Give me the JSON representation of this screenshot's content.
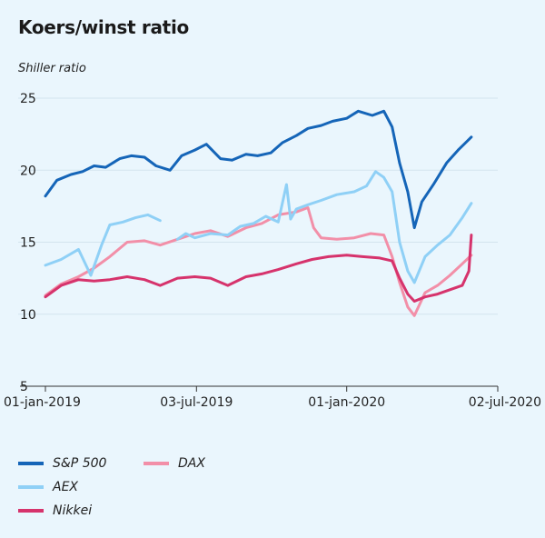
{
  "header": {
    "title": "Koers/winst ratio"
  },
  "chart_data": {
    "type": "line",
    "ylabel": "Shiller ratio",
    "ylim": [
      5,
      25
    ],
    "yticks": [
      "5",
      "10",
      "15",
      "20",
      "25"
    ],
    "xticks": [
      "01-jan-2019",
      "03-jul-2019",
      "01-jan-2020",
      "02-jul-2020"
    ],
    "grid": "horizontal",
    "legend_position": "bottom-left",
    "series": [
      {
        "name": "S&P 500",
        "color": "#1565b8",
        "x": [
          "2019-01-01",
          "2019-01-15",
          "2019-02-01",
          "2019-02-15",
          "2019-03-01",
          "2019-03-15",
          "2019-04-01",
          "2019-04-15",
          "2019-05-01",
          "2019-05-15",
          "2019-06-01",
          "2019-06-15",
          "2019-07-01",
          "2019-07-15",
          "2019-08-01",
          "2019-08-15",
          "2019-09-01",
          "2019-09-15",
          "2019-10-01",
          "2019-10-15",
          "2019-11-01",
          "2019-11-15",
          "2019-12-01",
          "2019-12-15",
          "2020-01-01",
          "2020-01-15",
          "2020-02-01",
          "2020-02-15",
          "2020-02-25",
          "2020-03-05",
          "2020-03-15",
          "2020-03-23",
          "2020-04-01",
          "2020-04-15",
          "2020-05-01",
          "2020-05-15",
          "2020-05-31"
        ],
        "values": [
          18.2,
          19.3,
          19.7,
          19.9,
          20.3,
          20.2,
          20.8,
          21.0,
          20.9,
          20.3,
          20.0,
          21.0,
          21.4,
          21.8,
          20.8,
          20.7,
          21.1,
          21.0,
          21.2,
          21.9,
          22.4,
          22.9,
          23.1,
          23.4,
          23.6,
          24.1,
          23.8,
          24.1,
          23.0,
          20.5,
          18.5,
          16.0,
          17.8,
          19.0,
          20.5,
          21.4,
          22.3
        ]
      },
      {
        "name": "AEX",
        "color": "#8fd0f6",
        "x": [
          "2019-01-01",
          "2019-01-20",
          "2019-02-10",
          "2019-02-25",
          "2019-03-10",
          "2019-03-20",
          "2019-04-05",
          "2019-04-20",
          "2019-05-05",
          "2019-05-20",
          "2019-06-01",
          "2019-06-10",
          "2019-06-20",
          "2019-07-01",
          "2019-07-20",
          "2019-08-10",
          "2019-08-25",
          "2019-09-10",
          "2019-09-25",
          "2019-10-10",
          "2019-10-20",
          "2019-10-25",
          "2019-11-01",
          "2019-11-15",
          "2019-12-01",
          "2019-12-20",
          "2020-01-10",
          "2020-01-25",
          "2020-02-05",
          "2020-02-15",
          "2020-02-25",
          "2020-03-05",
          "2020-03-15",
          "2020-03-23",
          "2020-04-05",
          "2020-04-20",
          "2020-05-05",
          "2020-05-20",
          "2020-05-31"
        ],
        "values": [
          13.4,
          13.8,
          14.5,
          12.7,
          14.8,
          16.2,
          16.4,
          16.7,
          16.9,
          16.5,
          null,
          15.2,
          15.6,
          15.3,
          15.6,
          15.5,
          16.1,
          16.3,
          16.8,
          16.4,
          19.0,
          16.6,
          17.3,
          17.6,
          17.9,
          18.3,
          18.5,
          18.9,
          19.9,
          19.5,
          18.5,
          15.0,
          13.0,
          12.2,
          14.0,
          14.8,
          15.5,
          16.7,
          17.7
        ]
      },
      {
        "name": "Nikkei",
        "color": "#d6336c",
        "x": [
          "2019-01-01",
          "2019-01-20",
          "2019-02-10",
          "2019-03-01",
          "2019-03-20",
          "2019-04-10",
          "2019-05-01",
          "2019-05-20",
          "2019-06-10",
          "2019-07-01",
          "2019-07-20",
          "2019-08-10",
          "2019-09-01",
          "2019-09-20",
          "2019-10-10",
          "2019-11-01",
          "2019-11-20",
          "2019-12-10",
          "2020-01-01",
          "2020-01-20",
          "2020-02-10",
          "2020-02-25",
          "2020-03-05",
          "2020-03-15",
          "2020-03-23",
          "2020-04-05",
          "2020-04-20",
          "2020-05-05",
          "2020-05-20",
          "2020-05-28",
          "2020-05-31"
        ],
        "values": [
          11.2,
          12.0,
          12.4,
          12.3,
          12.4,
          12.6,
          12.4,
          12.0,
          12.5,
          12.6,
          12.5,
          12.0,
          12.6,
          12.8,
          13.1,
          13.5,
          13.8,
          14.0,
          14.1,
          14.0,
          13.9,
          13.7,
          12.5,
          11.4,
          10.9,
          11.2,
          11.4,
          11.7,
          12.0,
          13.0,
          15.5
        ]
      },
      {
        "name": "DAX",
        "color": "#f28fa8",
        "x": [
          "2019-01-01",
          "2019-01-20",
          "2019-02-10",
          "2019-03-01",
          "2019-03-20",
          "2019-04-10",
          "2019-05-01",
          "2019-05-20",
          "2019-06-10",
          "2019-07-01",
          "2019-07-20",
          "2019-08-10",
          "2019-09-01",
          "2019-09-20",
          "2019-10-10",
          "2019-11-01",
          "2019-11-15",
          "2019-11-22",
          "2019-12-01",
          "2019-12-20",
          "2020-01-10",
          "2020-01-30",
          "2020-02-15",
          "2020-02-25",
          "2020-03-05",
          "2020-03-15",
          "2020-03-23",
          "2020-04-05",
          "2020-04-20",
          "2020-05-05",
          "2020-05-20",
          "2020-05-31"
        ],
        "values": [
          11.3,
          12.1,
          12.6,
          13.2,
          14.0,
          15.0,
          15.1,
          14.8,
          15.2,
          15.6,
          15.8,
          15.4,
          16.0,
          16.3,
          16.9,
          17.1,
          17.4,
          16.0,
          15.3,
          15.2,
          15.3,
          15.6,
          15.5,
          14.0,
          12.2,
          10.5,
          9.9,
          11.5,
          12.0,
          12.7,
          13.5,
          14.1
        ]
      }
    ]
  }
}
